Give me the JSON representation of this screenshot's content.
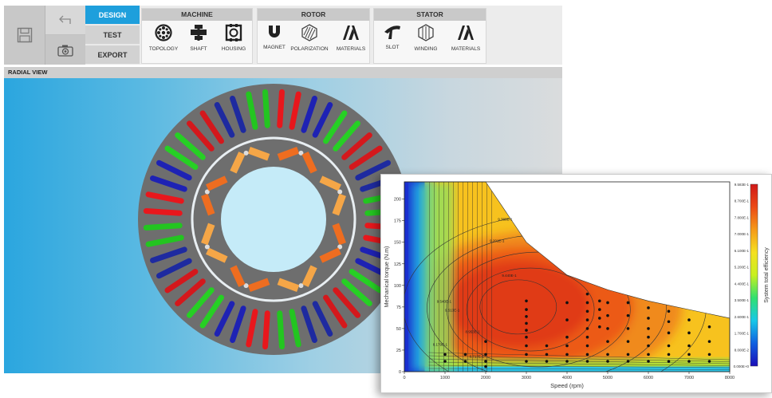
{
  "toolbar": {
    "modes": [
      {
        "label": "DESIGN",
        "active": true
      },
      {
        "label": "TEST",
        "active": false
      },
      {
        "label": "EXPORT",
        "active": false
      }
    ],
    "groups": [
      {
        "title": "MACHINE",
        "tools": [
          {
            "label": "TOPOLOGY",
            "icon": "topology-icon"
          },
          {
            "label": "SHAFT",
            "icon": "shaft-icon"
          },
          {
            "label": "HOUSING",
            "icon": "housing-icon"
          }
        ]
      },
      {
        "title": "ROTOR",
        "tools": [
          {
            "label": "MAGNET",
            "icon": "magnet-icon"
          },
          {
            "label": "POLARIZATION",
            "icon": "polarization-icon"
          },
          {
            "label": "MATERIALS",
            "icon": "materials-icon"
          }
        ]
      },
      {
        "title": "STATOR",
        "tools": [
          {
            "label": "SLOT",
            "icon": "slot-icon"
          },
          {
            "label": "WINDING",
            "icon": "winding-icon"
          },
          {
            "label": "MATERIALS",
            "icon": "materials-icon"
          }
        ]
      }
    ]
  },
  "radial_view": {
    "title": "RADIAL VIEW",
    "background_colors": [
      "#2ba6df",
      "#dadcdd"
    ],
    "stator_color": "#6e6e6e",
    "bore_color": "#c5ebf8",
    "winding_phase_colors": [
      "#e8171c",
      "#1e22b4",
      "#26d024",
      "#d4181c",
      "#1e2aa0",
      "#23c520"
    ],
    "magnet_colors": [
      "#f5a647",
      "#ee6d20"
    ],
    "slot_count": 48,
    "pole_count": 8
  },
  "chart_data": {
    "type": "heatmap",
    "xlabel": "Speed (rpm)",
    "ylabel": "Mechanical torque (N.m)",
    "colorbar_label": "System total efficiency",
    "xlim": [
      0,
      8000
    ],
    "ylim": [
      0,
      220
    ],
    "x_ticks": [
      "0",
      "1000",
      "2000",
      "3000",
      "4000",
      "5000",
      "6000",
      "7000",
      "8000"
    ],
    "y_ticks": [
      "0",
      "25",
      "50",
      "75",
      "100",
      "125",
      "150",
      "175",
      "200"
    ],
    "colorbar_ticks": [
      "9.583E-1",
      "8.700E-1",
      "7.800E-1",
      "7.000E-1",
      "6.100E-1",
      "5.200E-1",
      "4.400E-1",
      "3.500E-1",
      "2.600E-1",
      "1.700E-1",
      "8.000E-2",
      "0.000E+0"
    ],
    "colorscale": [
      "#1a0db8",
      "#1060e0",
      "#18c8e8",
      "#30e070",
      "#c8f020",
      "#f5e020",
      "#f59a18",
      "#ec4a16",
      "#d01818"
    ],
    "contour_labels": [
      "9.380E-1",
      "9.201E-1",
      "9.440E-1",
      "9.540E-1",
      "9.513E-1",
      "8.953E-1",
      "8.717E-1",
      "8.179E-1"
    ],
    "operating_points": [
      {
        "x": 1000,
        "y": 20
      },
      {
        "x": 1000,
        "y": 12
      },
      {
        "x": 1500,
        "y": 20
      },
      {
        "x": 1500,
        "y": 12
      },
      {
        "x": 2000,
        "y": 35
      },
      {
        "x": 2000,
        "y": 20
      },
      {
        "x": 2000,
        "y": 12
      },
      {
        "x": 2000,
        "y": 6
      },
      {
        "x": 3000,
        "y": 82
      },
      {
        "x": 3000,
        "y": 72
      },
      {
        "x": 3000,
        "y": 64
      },
      {
        "x": 3000,
        "y": 56
      },
      {
        "x": 3000,
        "y": 48
      },
      {
        "x": 3000,
        "y": 40
      },
      {
        "x": 3000,
        "y": 30
      },
      {
        "x": 3000,
        "y": 20
      },
      {
        "x": 3000,
        "y": 12
      },
      {
        "x": 3500,
        "y": 30
      },
      {
        "x": 3500,
        "y": 20
      },
      {
        "x": 3500,
        "y": 12
      },
      {
        "x": 4000,
        "y": 80
      },
      {
        "x": 4000,
        "y": 60
      },
      {
        "x": 4000,
        "y": 40
      },
      {
        "x": 4000,
        "y": 30
      },
      {
        "x": 4000,
        "y": 20
      },
      {
        "x": 4000,
        "y": 12
      },
      {
        "x": 4500,
        "y": 90
      },
      {
        "x": 4500,
        "y": 80
      },
      {
        "x": 4500,
        "y": 70
      },
      {
        "x": 4500,
        "y": 60
      },
      {
        "x": 4500,
        "y": 50
      },
      {
        "x": 4500,
        "y": 40
      },
      {
        "x": 4500,
        "y": 30
      },
      {
        "x": 4500,
        "y": 20
      },
      {
        "x": 4500,
        "y": 12
      },
      {
        "x": 4800,
        "y": 82
      },
      {
        "x": 4800,
        "y": 72
      },
      {
        "x": 4800,
        "y": 62
      },
      {
        "x": 4800,
        "y": 52
      },
      {
        "x": 5000,
        "y": 80
      },
      {
        "x": 5000,
        "y": 65
      },
      {
        "x": 5000,
        "y": 50
      },
      {
        "x": 5000,
        "y": 35
      },
      {
        "x": 5000,
        "y": 20
      },
      {
        "x": 5000,
        "y": 12
      },
      {
        "x": 5500,
        "y": 80
      },
      {
        "x": 5500,
        "y": 65
      },
      {
        "x": 5500,
        "y": 50
      },
      {
        "x": 5500,
        "y": 35
      },
      {
        "x": 5500,
        "y": 20
      },
      {
        "x": 5500,
        "y": 12
      },
      {
        "x": 6000,
        "y": 74
      },
      {
        "x": 6000,
        "y": 62
      },
      {
        "x": 6000,
        "y": 50
      },
      {
        "x": 6000,
        "y": 40
      },
      {
        "x": 6000,
        "y": 30
      },
      {
        "x": 6000,
        "y": 20
      },
      {
        "x": 6000,
        "y": 12
      },
      {
        "x": 6500,
        "y": 70
      },
      {
        "x": 6500,
        "y": 58
      },
      {
        "x": 6500,
        "y": 45
      },
      {
        "x": 6500,
        "y": 30
      },
      {
        "x": 6500,
        "y": 20
      },
      {
        "x": 6500,
        "y": 12
      },
      {
        "x": 7000,
        "y": 60
      },
      {
        "x": 7000,
        "y": 45
      },
      {
        "x": 7000,
        "y": 30
      },
      {
        "x": 7000,
        "y": 20
      },
      {
        "x": 7000,
        "y": 12
      },
      {
        "x": 7500,
        "y": 52
      },
      {
        "x": 7500,
        "y": 35
      },
      {
        "x": 7500,
        "y": 20
      },
      {
        "x": 7500,
        "y": 12
      }
    ]
  }
}
